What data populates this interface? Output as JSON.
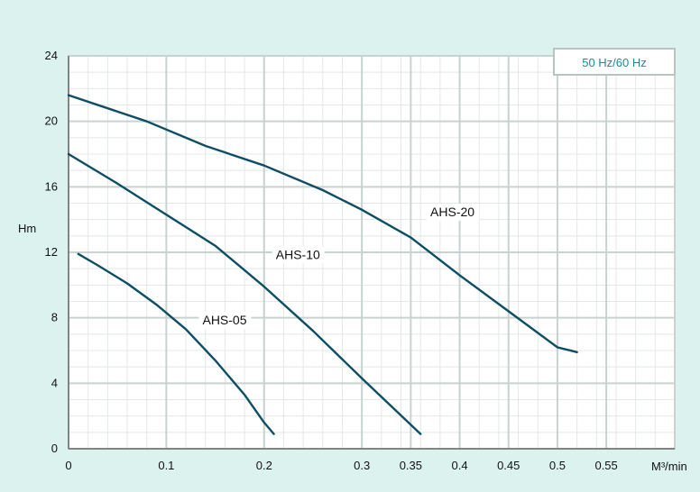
{
  "colors": {
    "background": "#dcf2ee",
    "plot_background": "#ffffff",
    "grid": "#c8d2d0",
    "series": "#0e4e62",
    "legend_text": "#1a8a9a"
  },
  "chart_data": {
    "type": "line",
    "legend_label": "50 Hz/60 Hz",
    "xlabel": "M³/min",
    "ylabel": "Hm",
    "xlim": [
      0,
      0.62
    ],
    "ylim": [
      0,
      24
    ],
    "x_ticks": [
      {
        "value": 0,
        "label": "0"
      },
      {
        "value": 0.1,
        "label": "0.1"
      },
      {
        "value": 0.2,
        "label": "0.2"
      },
      {
        "value": 0.3,
        "label": "0.3"
      },
      {
        "value": 0.35,
        "label": "0.35"
      },
      {
        "value": 0.4,
        "label": "0.4"
      },
      {
        "value": 0.45,
        "label": "0.45"
      },
      {
        "value": 0.5,
        "label": "0.5"
      },
      {
        "value": 0.55,
        "label": "0.55"
      }
    ],
    "y_ticks": [
      {
        "value": 0,
        "label": "0"
      },
      {
        "value": 4,
        "label": "4"
      },
      {
        "value": 8,
        "label": "8"
      },
      {
        "value": 12,
        "label": "12"
      },
      {
        "value": 16,
        "label": "16"
      },
      {
        "value": 20,
        "label": "20"
      },
      {
        "value": 24,
        "label": "24"
      }
    ],
    "grid": true,
    "series": [
      {
        "name": "AHS-05",
        "label_at": [
          0.137,
          7.6
        ],
        "points": [
          [
            0.01,
            11.9
          ],
          [
            0.03,
            11.2
          ],
          [
            0.06,
            10.1
          ],
          [
            0.09,
            8.8
          ],
          [
            0.12,
            7.3
          ],
          [
            0.15,
            5.4
          ],
          [
            0.18,
            3.3
          ],
          [
            0.2,
            1.6
          ],
          [
            0.21,
            0.9
          ]
        ]
      },
      {
        "name": "AHS-10",
        "label_at": [
          0.212,
          11.6
        ],
        "points": [
          [
            0.0,
            18.0
          ],
          [
            0.05,
            16.2
          ],
          [
            0.1,
            14.3
          ],
          [
            0.15,
            12.4
          ],
          [
            0.2,
            9.9
          ],
          [
            0.25,
            7.2
          ],
          [
            0.3,
            4.3
          ],
          [
            0.36,
            0.9
          ]
        ]
      },
      {
        "name": "AHS-20",
        "label_at": [
          0.37,
          14.2
        ],
        "points": [
          [
            0.0,
            21.6
          ],
          [
            0.08,
            20.0
          ],
          [
            0.14,
            18.5
          ],
          [
            0.2,
            17.3
          ],
          [
            0.26,
            15.8
          ],
          [
            0.3,
            14.6
          ],
          [
            0.35,
            12.9
          ],
          [
            0.4,
            10.6
          ],
          [
            0.45,
            8.4
          ],
          [
            0.5,
            6.2
          ],
          [
            0.52,
            5.9
          ]
        ]
      }
    ]
  }
}
